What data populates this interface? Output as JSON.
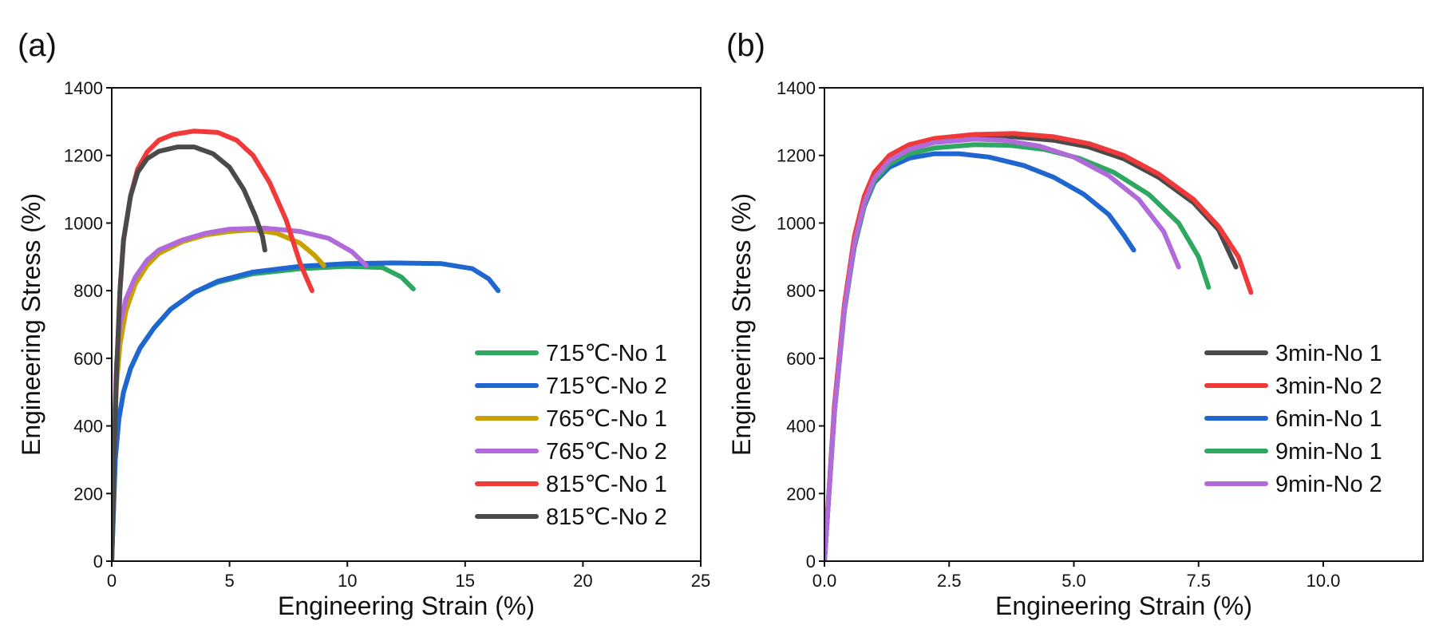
{
  "chart_data": [
    {
      "type": "line",
      "panel_label": "(a)",
      "xlabel": "Engineering Strain (%)",
      "ylabel": "Engineering Stress (%)",
      "xlim": [
        0,
        25
      ],
      "ylim": [
        0,
        1400
      ],
      "xticks": [
        0,
        5,
        10,
        15,
        20,
        25
      ],
      "xtick_labels": [
        "0",
        "5",
        "10",
        "15",
        "20",
        "25"
      ],
      "yticks": [
        0,
        200,
        400,
        600,
        800,
        1000,
        1200,
        1400
      ],
      "ytick_labels": [
        "0",
        "200",
        "400",
        "600",
        "800",
        "1000",
        "1200",
        "1400"
      ],
      "legend_position": "bottom-right",
      "series": [
        {
          "name": "715℃-No 1",
          "color": "#2ea860",
          "points": [
            [
              0,
              0
            ],
            [
              0.15,
              300
            ],
            [
              0.3,
              420
            ],
            [
              0.5,
              500
            ],
            [
              0.8,
              570
            ],
            [
              1.2,
              630
            ],
            [
              1.8,
              690
            ],
            [
              2.5,
              745
            ],
            [
              3.5,
              795
            ],
            [
              4.5,
              825
            ],
            [
              6,
              850
            ],
            [
              8,
              865
            ],
            [
              10,
              872
            ],
            [
              11.5,
              868
            ],
            [
              12.3,
              840
            ],
            [
              12.8,
              805
            ]
          ]
        },
        {
          "name": "715℃-No 2",
          "color": "#1f66d1",
          "points": [
            [
              0,
              0
            ],
            [
              0.15,
              300
            ],
            [
              0.3,
              420
            ],
            [
              0.5,
              500
            ],
            [
              0.8,
              570
            ],
            [
              1.2,
              630
            ],
            [
              1.8,
              690
            ],
            [
              2.5,
              745
            ],
            [
              3.5,
              795
            ],
            [
              4.5,
              828
            ],
            [
              6,
              855
            ],
            [
              8,
              872
            ],
            [
              10,
              880
            ],
            [
              12,
              882
            ],
            [
              14,
              880
            ],
            [
              15.3,
              865
            ],
            [
              16,
              835
            ],
            [
              16.4,
              800
            ]
          ]
        },
        {
          "name": "765℃-No 1",
          "color": "#c8a000",
          "points": [
            [
              0,
              0
            ],
            [
              0.1,
              350
            ],
            [
              0.2,
              520
            ],
            [
              0.35,
              640
            ],
            [
              0.6,
              740
            ],
            [
              1,
              820
            ],
            [
              1.5,
              875
            ],
            [
              2,
              910
            ],
            [
              3,
              945
            ],
            [
              4,
              965
            ],
            [
              5,
              975
            ],
            [
              6,
              980
            ],
            [
              7,
              970
            ],
            [
              8,
              940
            ],
            [
              8.6,
              905
            ],
            [
              9,
              875
            ]
          ]
        },
        {
          "name": "765℃-No 2",
          "color": "#b06ad9",
          "points": [
            [
              0,
              0
            ],
            [
              0.1,
              380
            ],
            [
              0.2,
              580
            ],
            [
              0.35,
              700
            ],
            [
              0.6,
              775
            ],
            [
              1,
              840
            ],
            [
              1.5,
              890
            ],
            [
              2,
              920
            ],
            [
              3,
              950
            ],
            [
              4,
              970
            ],
            [
              5,
              982
            ],
            [
              6.5,
              985
            ],
            [
              8,
              975
            ],
            [
              9.2,
              955
            ],
            [
              10.2,
              915
            ],
            [
              10.8,
              875
            ]
          ]
        },
        {
          "name": "815℃-No 1",
          "color": "#f03a3a",
          "points": [
            [
              0,
              0
            ],
            [
              0.1,
              300
            ],
            [
              0.2,
              550
            ],
            [
              0.35,
              800
            ],
            [
              0.5,
              950
            ],
            [
              0.8,
              1080
            ],
            [
              1.1,
              1160
            ],
            [
              1.5,
              1210
            ],
            [
              2,
              1245
            ],
            [
              2.6,
              1262
            ],
            [
              3.5,
              1272
            ],
            [
              4.5,
              1268
            ],
            [
              5.3,
              1245
            ],
            [
              6,
              1200
            ],
            [
              6.7,
              1120
            ],
            [
              7.4,
              1010
            ],
            [
              8,
              880
            ],
            [
              8.5,
              800
            ]
          ]
        },
        {
          "name": "815℃-No 2",
          "color": "#4a4a4a",
          "points": [
            [
              0,
              0
            ],
            [
              0.1,
              300
            ],
            [
              0.2,
              550
            ],
            [
              0.35,
              800
            ],
            [
              0.5,
              950
            ],
            [
              0.8,
              1080
            ],
            [
              1.1,
              1150
            ],
            [
              1.5,
              1190
            ],
            [
              2,
              1212
            ],
            [
              2.8,
              1225
            ],
            [
              3.5,
              1225
            ],
            [
              4.3,
              1205
            ],
            [
              5,
              1165
            ],
            [
              5.6,
              1100
            ],
            [
              6.1,
              1020
            ],
            [
              6.4,
              960
            ],
            [
              6.5,
              920
            ]
          ]
        }
      ]
    },
    {
      "type": "line",
      "panel_label": "(b)",
      "xlabel": "Engineering Strain (%)",
      "ylabel": "Engineering Stress (%)",
      "xlim": [
        0,
        12
      ],
      "ylim": [
        0,
        1400
      ],
      "xticks": [
        0,
        2.5,
        5,
        7.5,
        10
      ],
      "xtick_labels": [
        "0.0",
        "2.5",
        "5.0",
        "7.5",
        "10.0"
      ],
      "yticks": [
        0,
        200,
        400,
        600,
        800,
        1000,
        1200,
        1400
      ],
      "ytick_labels": [
        "0",
        "200",
        "400",
        "600",
        "800",
        "1000",
        "1200",
        "1400"
      ],
      "legend_position": "bottom-right",
      "series": [
        {
          "name": "3min-No 1",
          "color": "#4a4a4a",
          "points": [
            [
              0,
              0
            ],
            [
              0.2,
              450
            ],
            [
              0.4,
              750
            ],
            [
              0.6,
              950
            ],
            [
              0.8,
              1070
            ],
            [
              1,
              1140
            ],
            [
              1.3,
              1190
            ],
            [
              1.7,
              1225
            ],
            [
              2.2,
              1245
            ],
            [
              3,
              1255
            ],
            [
              3.8,
              1255
            ],
            [
              4.6,
              1245
            ],
            [
              5.3,
              1225
            ],
            [
              6,
              1190
            ],
            [
              6.7,
              1135
            ],
            [
              7.4,
              1060
            ],
            [
              7.9,
              980
            ],
            [
              8.25,
              870
            ]
          ]
        },
        {
          "name": "3min-No 2",
          "color": "#f03a3a",
          "points": [
            [
              0,
              0
            ],
            [
              0.2,
              460
            ],
            [
              0.4,
              760
            ],
            [
              0.6,
              960
            ],
            [
              0.8,
              1080
            ],
            [
              1,
              1150
            ],
            [
              1.3,
              1200
            ],
            [
              1.7,
              1232
            ],
            [
              2.2,
              1250
            ],
            [
              3,
              1262
            ],
            [
              3.8,
              1265
            ],
            [
              4.6,
              1255
            ],
            [
              5.3,
              1235
            ],
            [
              6,
              1200
            ],
            [
              6.7,
              1145
            ],
            [
              7.4,
              1070
            ],
            [
              7.9,
              990
            ],
            [
              8.3,
              900
            ],
            [
              8.55,
              795
            ]
          ]
        },
        {
          "name": "6min-No 1",
          "color": "#1f66d1",
          "points": [
            [
              0,
              0
            ],
            [
              0.2,
              440
            ],
            [
              0.4,
              740
            ],
            [
              0.6,
              930
            ],
            [
              0.8,
              1050
            ],
            [
              1,
              1120
            ],
            [
              1.3,
              1165
            ],
            [
              1.7,
              1192
            ],
            [
              2.2,
              1205
            ],
            [
              2.7,
              1205
            ],
            [
              3.3,
              1195
            ],
            [
              4,
              1170
            ],
            [
              4.6,
              1135
            ],
            [
              5.2,
              1085
            ],
            [
              5.7,
              1025
            ],
            [
              6,
              965
            ],
            [
              6.2,
              920
            ]
          ]
        },
        {
          "name": "9min-No 1",
          "color": "#2ea860",
          "points": [
            [
              0,
              0
            ],
            [
              0.2,
              440
            ],
            [
              0.4,
              740
            ],
            [
              0.6,
              935
            ],
            [
              0.8,
              1055
            ],
            [
              1,
              1125
            ],
            [
              1.3,
              1175
            ],
            [
              1.7,
              1205
            ],
            [
              2.2,
              1222
            ],
            [
              3,
              1232
            ],
            [
              3.7,
              1230
            ],
            [
              4.4,
              1218
            ],
            [
              5.1,
              1192
            ],
            [
              5.8,
              1150
            ],
            [
              6.5,
              1085
            ],
            [
              7.1,
              1000
            ],
            [
              7.5,
              900
            ],
            [
              7.7,
              810
            ]
          ]
        },
        {
          "name": "9min-No 2",
          "color": "#b06ad9",
          "points": [
            [
              0,
              0
            ],
            [
              0.2,
              440
            ],
            [
              0.4,
              745
            ],
            [
              0.6,
              940
            ],
            [
              0.8,
              1060
            ],
            [
              1,
              1132
            ],
            [
              1.3,
              1185
            ],
            [
              1.7,
              1218
            ],
            [
              2.2,
              1238
            ],
            [
              3,
              1248
            ],
            [
              3.6,
              1245
            ],
            [
              4.3,
              1228
            ],
            [
              5,
              1195
            ],
            [
              5.7,
              1140
            ],
            [
              6.3,
              1070
            ],
            [
              6.8,
              975
            ],
            [
              7.1,
              870
            ]
          ]
        }
      ]
    }
  ]
}
